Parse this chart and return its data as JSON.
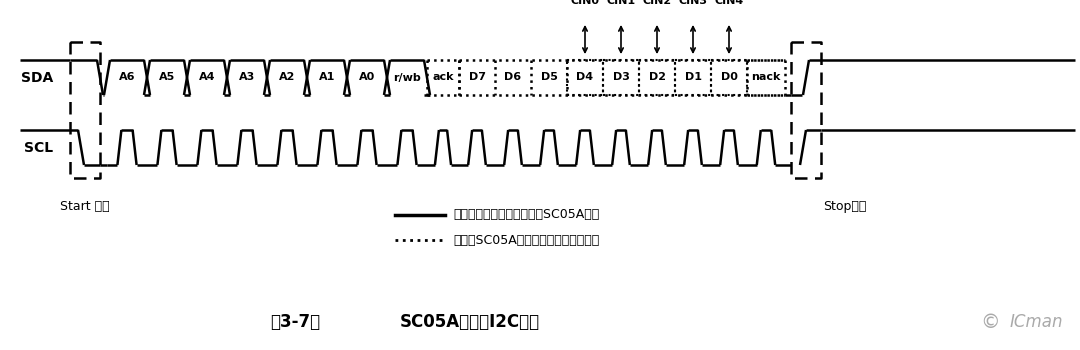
{
  "title_label": "图3-7：",
  "title_main": "SC05A简化的I2C协议",
  "sda_label": "SDA",
  "scl_label": "SCL",
  "start_label": "Start 信号",
  "stop_label": "Stop信号",
  "legend_solid_text": "数据由单片机控制器发出，SC05A接收",
  "legend_dotted_text": "数据由SC05A发出，单片机控制器接收",
  "cin_labels": [
    "CIN0",
    "CIN1",
    "CIN2",
    "CIN3",
    "CIN4"
  ],
  "bit_labels_solid": [
    "A6",
    "A5",
    "A4",
    "A3",
    "A2",
    "A1",
    "A0",
    "r/wb"
  ],
  "bit_labels_dotted_plain": [
    "D7",
    "D6",
    "D5"
  ],
  "bit_labels_dotted_box": [
    "D4",
    "D3",
    "D2",
    "D1",
    "D0"
  ],
  "ack_label": "ack",
  "nack_label": "nack",
  "bg_color": "#ffffff",
  "fg_color": "#000000",
  "icman_text": "ICman",
  "icman_color": "#aaaaaa"
}
